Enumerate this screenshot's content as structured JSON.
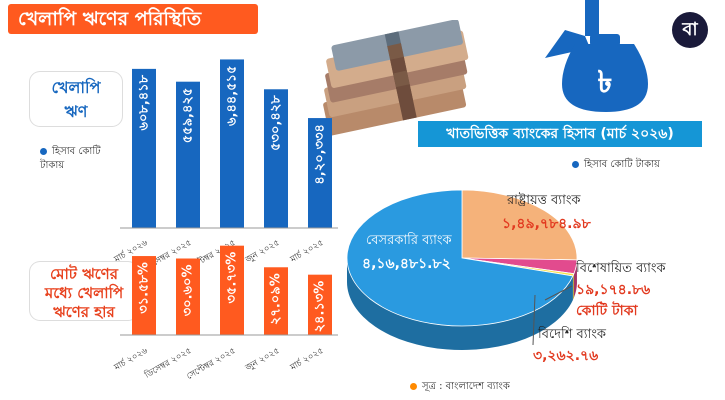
{
  "header": {
    "title": "খেলাপি ঋণের পরিস্থিতি",
    "logo_text": "বা"
  },
  "colors": {
    "blue": "#1767bf",
    "orange": "#ff5a1f",
    "banner": "#1596d6"
  },
  "default_panel": {
    "label_line1": "খেলাপি",
    "label_line2": "ঋণ",
    "legend": "হিসাব কোটি টাকায়"
  },
  "ratio_panel": {
    "label_line1": "মোট ঋণের",
    "label_line2": "মধ্যে খেলাপি",
    "label_line3": "ঋণের হার"
  },
  "sector_panel": {
    "banner": "খাতভিত্তিক ব্যাংকের হিসাব (মার্চ ২০২৬)",
    "legend": "হিসাব কোটি টাকায়"
  },
  "source": "সূত্র : বাংলাদেশ ব্যাংক",
  "chart_data": [
    {
      "type": "bar",
      "categories": [
        "মার্চ ২০২৬",
        "ডিসেম্বর ২০২৫",
        "সেপ্টেম্বর ২০২৫",
        "জুন ২০২৫",
        "মার্চ ২০২৫"
      ],
      "values": [
        608418,
        559425,
        644515,
        530428,
        420334
      ],
      "data_labels": [
        "৬০৮,৪১৮",
        "৫৫৯,৪২৫",
        "৬,৪৪,৫১৫",
        "৫৩০,৪২৮",
        "৪,২০,৩৩৪"
      ],
      "color": "#1767bf"
    },
    {
      "type": "bar",
      "categories": [
        "মার্চ ২০২৬",
        "ডিসেম্বর ২০২৫",
        "সেপ্টেম্বর ২০২৫",
        "জুন ২০২৫",
        "মার্চ ২০২৫"
      ],
      "values": [
        31.58,
        30.6,
        35.73,
        27.09,
        24.13
      ],
      "data_labels": [
        "৩১.৫৮%",
        "৩০.৬০%",
        "৩৫.৭৩%",
        "২৭.০৯%",
        "২৪.১৩%"
      ],
      "color": "#ff5a1f"
    },
    {
      "type": "pie",
      "slices": [
        {
          "name": "রাষ্ট্রায়ত্ত ব্যাংক",
          "value": 149784.98,
          "value_label": "১,৪৯,৭৮৪.৯৮",
          "color": "#f5b27a"
        },
        {
          "name": "বেসরকারি ব্যাংক",
          "value": 416481.82,
          "value_label": "৪,১৬,৪৮১.৮২",
          "color": "#2a9ae0"
        },
        {
          "name": "বিশেষায়িত ব্যাংক",
          "value": 19174.86,
          "value_label": "১৯,১৭৪.৮৬",
          "color": "#e24b8e"
        },
        {
          "name": "বিদেশি ব্যাংক",
          "value": 3262.76,
          "value_label": "৩,২৬২.৭৬",
          "color": "#f7e04a"
        }
      ],
      "unit_label": "কোটি টাকা"
    }
  ]
}
